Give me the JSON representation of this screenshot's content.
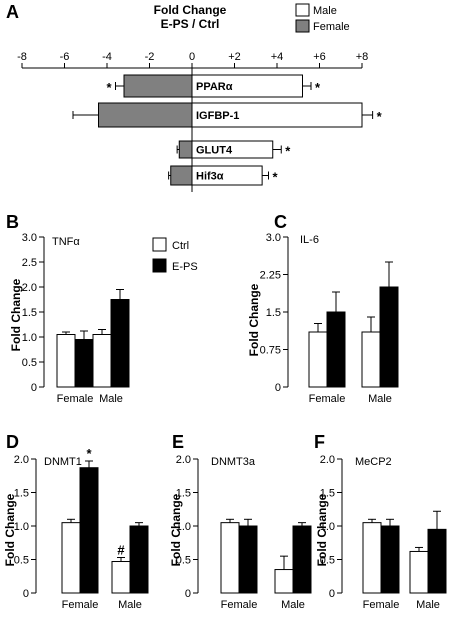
{
  "figure": {
    "width": 474,
    "height": 623
  },
  "chart_data": [
    {
      "panel": "A",
      "type": "bar",
      "orientation": "horizontal",
      "title": "Fold Change",
      "subtitle": "E-PS / Ctrl",
      "xlim": [
        -8,
        8
      ],
      "ticks": [
        -8,
        -6,
        -4,
        -2,
        0,
        2,
        4,
        6,
        8
      ],
      "tick_labels": [
        "-8",
        "-6",
        "-4",
        "-2",
        "0",
        "+2",
        "+4",
        "+6",
        "+8"
      ],
      "categories": [
        "PPARα",
        "IGFBP-1",
        "GLUT4",
        "Hif3α"
      ],
      "series": [
        {
          "name": "Male",
          "color": "#ffffff",
          "values": [
            5.2,
            8.0,
            3.8,
            3.3
          ],
          "errors": [
            0.4,
            0.5,
            0.4,
            0.3
          ],
          "significant": [
            true,
            true,
            true,
            true
          ]
        },
        {
          "name": "Female",
          "color": "#808080",
          "values": [
            -3.2,
            -4.4,
            -0.6,
            -1.0
          ],
          "errors": [
            0.4,
            1.2,
            0.1,
            0.1
          ],
          "significant": [
            true,
            false,
            false,
            false
          ]
        }
      ],
      "legend": "top-right"
    },
    {
      "panel": "B",
      "type": "bar",
      "gene": "TNFα",
      "ylabel": "Fold Change",
      "ylim": [
        0,
        3.0
      ],
      "yticks": [
        0,
        0.5,
        1.0,
        1.5,
        2.0,
        2.5,
        3.0
      ],
      "ytick_labels": [
        "0",
        "0.5",
        "1.0",
        "1.5",
        "2.0",
        "2.5",
        "3.0"
      ],
      "categories": [
        "Female",
        "Male"
      ],
      "series": [
        {
          "name": "Ctrl",
          "color": "#ffffff",
          "values": [
            1.05,
            1.05
          ],
          "errors": [
            0.05,
            0.1
          ]
        },
        {
          "name": "E-PS",
          "color": "#000000",
          "values": [
            0.95,
            1.75
          ],
          "errors": [
            0.17,
            0.2
          ]
        }
      ],
      "legend": "top-center"
    },
    {
      "panel": "C",
      "type": "bar",
      "gene": "IL-6",
      "ylabel": "Fold Change",
      "ylim": [
        0,
        3.0
      ],
      "yticks": [
        0,
        0.75,
        1.5,
        2.25,
        3.0
      ],
      "ytick_labels": [
        "0",
        "0.75",
        "1.5",
        "2.25",
        "3.0"
      ],
      "categories": [
        "Female",
        "Male"
      ],
      "series": [
        {
          "name": "Ctrl",
          "color": "#ffffff",
          "values": [
            1.1,
            1.1
          ],
          "errors": [
            0.17,
            0.3
          ]
        },
        {
          "name": "E-PS",
          "color": "#000000",
          "values": [
            1.5,
            2.0
          ],
          "errors": [
            0.4,
            0.5
          ]
        }
      ]
    },
    {
      "panel": "D",
      "type": "bar",
      "gene": "DNMT1",
      "ylabel": "Fold Change",
      "ylim": [
        0,
        2.0
      ],
      "yticks": [
        0,
        0.5,
        1.0,
        1.5,
        2.0
      ],
      "ytick_labels": [
        "0",
        "0.5",
        "1.0",
        "1.5",
        "2.0"
      ],
      "categories": [
        "Female",
        "Male"
      ],
      "series": [
        {
          "name": "Ctrl",
          "color": "#ffffff",
          "values": [
            1.05,
            0.47
          ],
          "errors": [
            0.05,
            0.06
          ],
          "marks": [
            "",
            "#"
          ]
        },
        {
          "name": "E-PS",
          "color": "#000000",
          "values": [
            1.87,
            1.0
          ],
          "errors": [
            0.1,
            0.05
          ],
          "marks": [
            "*",
            ""
          ]
        }
      ]
    },
    {
      "panel": "E",
      "type": "bar",
      "gene": "DNMT3a",
      "ylabel": "Fold Change",
      "ylim": [
        0,
        2.0
      ],
      "yticks": [
        0,
        0.5,
        1.0,
        1.5,
        2.0
      ],
      "ytick_labels": [
        "0",
        "0.5",
        "1.0",
        "1.5",
        "2.0"
      ],
      "categories": [
        "Female",
        "Male"
      ],
      "series": [
        {
          "name": "Ctrl",
          "color": "#ffffff",
          "values": [
            1.05,
            0.35
          ],
          "errors": [
            0.05,
            0.2
          ]
        },
        {
          "name": "E-PS",
          "color": "#000000",
          "values": [
            1.0,
            1.0
          ],
          "errors": [
            0.1,
            0.05
          ]
        }
      ]
    },
    {
      "panel": "F",
      "type": "bar",
      "gene": "MeCP2",
      "ylabel": "Fold Change",
      "ylim": [
        0,
        2.0
      ],
      "yticks": [
        0,
        0.5,
        1.0,
        1.5,
        2.0
      ],
      "ytick_labels": [
        "0",
        "0.5",
        "1.0",
        "1.5",
        "2.0"
      ],
      "categories": [
        "Female",
        "Male"
      ],
      "series": [
        {
          "name": "Ctrl",
          "color": "#ffffff",
          "values": [
            1.05,
            0.62
          ],
          "errors": [
            0.05,
            0.06
          ]
        },
        {
          "name": "E-PS",
          "color": "#000000",
          "values": [
            1.0,
            0.95
          ],
          "errors": [
            0.1,
            0.27
          ]
        }
      ]
    }
  ]
}
